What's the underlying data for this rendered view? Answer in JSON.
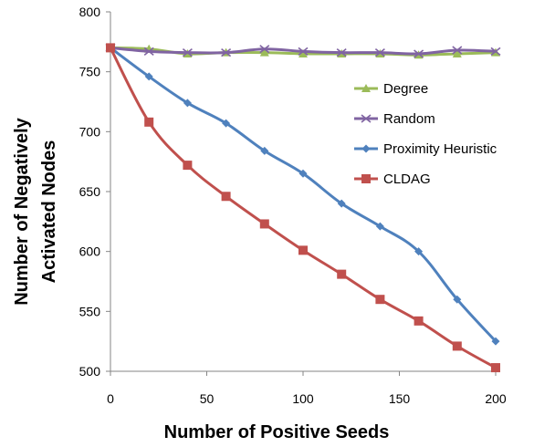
{
  "chart_data": {
    "type": "line",
    "title": "",
    "xlabel": "Number of Positive Seeds",
    "ylabel_lines": [
      "Number of Negatively",
      "Activated Nodes"
    ],
    "x": [
      0,
      20,
      40,
      60,
      80,
      100,
      120,
      140,
      160,
      180,
      200
    ],
    "xlim": [
      0,
      200
    ],
    "ylim": [
      500,
      800
    ],
    "xticks": [
      0,
      50,
      100,
      150,
      200
    ],
    "yticks": [
      500,
      550,
      600,
      650,
      700,
      750,
      800
    ],
    "grid": false,
    "legend_position": "right",
    "series": [
      {
        "name": "Degree",
        "color": "#9BBB59",
        "marker": "triangle",
        "values": [
          770,
          769,
          765,
          766,
          766,
          765,
          765,
          765,
          764,
          765,
          766
        ]
      },
      {
        "name": "Random",
        "color": "#8064A2",
        "marker": "x",
        "values": [
          770,
          767,
          766,
          766,
          769,
          767,
          766,
          766,
          765,
          768,
          767
        ]
      },
      {
        "name": "Proximity Heuristic",
        "color": "#4F81BD",
        "marker": "diamond",
        "values": [
          770,
          746,
          724,
          707,
          684,
          665,
          640,
          621,
          600,
          560,
          525
        ]
      },
      {
        "name": "CLDAG",
        "color": "#C0504D",
        "marker": "square",
        "values": [
          770,
          708,
          672,
          646,
          623,
          601,
          581,
          560,
          542,
          521,
          503
        ]
      }
    ]
  }
}
